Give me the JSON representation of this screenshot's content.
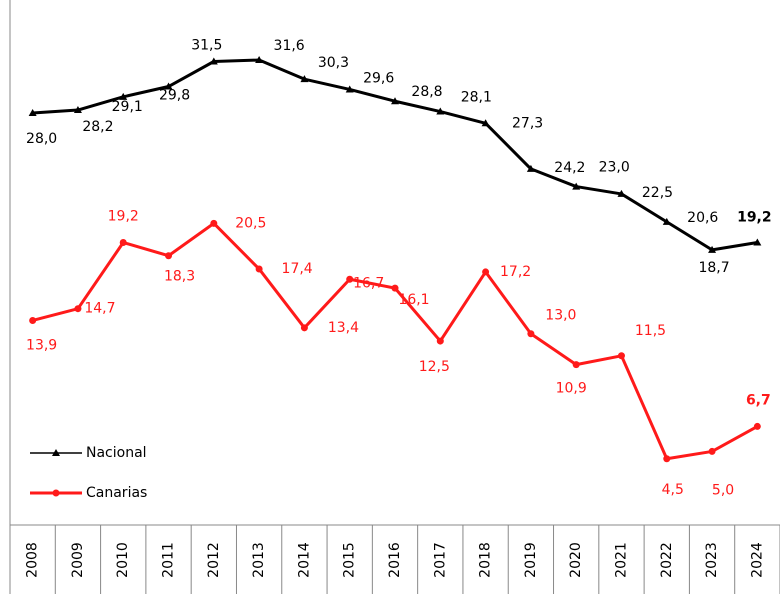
{
  "chart_data": {
    "type": "line",
    "categories": [
      "2008",
      "2009",
      "2010",
      "2011",
      "2012",
      "2013",
      "2014",
      "2015",
      "2016",
      "2017",
      "2018",
      "2019",
      "2020",
      "2021",
      "2022",
      "2023",
      "2024"
    ],
    "series": [
      {
        "name": "Nacional",
        "color": "#000000",
        "values": [
          28.0,
          28.2,
          29.1,
          29.8,
          31.5,
          31.6,
          30.3,
          29.6,
          28.8,
          28.1,
          27.3,
          24.2,
          23.0,
          22.5,
          20.6,
          18.7,
          19.2
        ],
        "value_labels": [
          "28,0",
          "28,2",
          "29,1",
          "29,8",
          "31,5",
          "31,6",
          "30,3",
          "29,6",
          "28,8",
          "28,1",
          "27,3",
          "24,2",
          "23,0",
          "22,5",
          "20,6",
          "18,7",
          "19,2"
        ]
      },
      {
        "name": "Canarias",
        "color": "#ff1a1a",
        "values": [
          13.9,
          14.7,
          19.2,
          18.3,
          20.5,
          17.4,
          13.4,
          16.7,
          16.1,
          12.5,
          17.2,
          13.0,
          10.9,
          11.5,
          4.5,
          5.0,
          6.7
        ],
        "value_labels": [
          "13,9",
          "14,7",
          "19,2",
          "18,3",
          "20,5",
          "17,4",
          "13,4",
          "16,7",
          "16,1",
          "12,5",
          "17,2",
          "13,0",
          "10,9",
          "11,5",
          "4,5",
          "5,0",
          "6,7"
        ]
      }
    ],
    "ylim": [
      0,
      35
    ],
    "legend": "lower left"
  }
}
